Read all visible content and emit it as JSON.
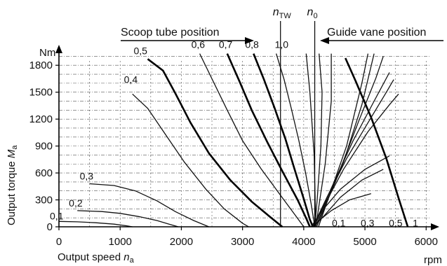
{
  "chart_data": {
    "type": "line",
    "xlabel": "Output speed",
    "xlabel_sub": "a",
    "xlabel_var": "n",
    "ylabel": "Output torque",
    "ylabel_var": "M",
    "ylabel_sub": "a",
    "x_unit": "rpm",
    "y_unit": "Nm",
    "xlim": [
      0,
      6100
    ],
    "ylim": [
      0,
      1950
    ],
    "x_ticks": [
      "0",
      "1000",
      "2000",
      "3000",
      "4000",
      "5000",
      "6000"
    ],
    "y_ticks": [
      "0",
      "300",
      "600",
      "900",
      "1200",
      "1500",
      "1800"
    ],
    "grid": true,
    "header_left": "Scoop tube position",
    "header_right": "Guide vane position",
    "marker_ntw": {
      "var": "n",
      "sub": "TW",
      "x": 3620
    },
    "marker_n0": {
      "var": "n",
      "sub": "0",
      "x": 4180
    },
    "scoop_series": [
      {
        "label": "0,1",
        "bold": false,
        "points": [
          [
            0,
            60
          ],
          [
            300,
            55
          ],
          [
            600,
            45
          ],
          [
            900,
            30
          ],
          [
            1100,
            12
          ],
          [
            1200,
            0
          ]
        ]
      },
      {
        "label": "0,2",
        "bold": false,
        "points": [
          [
            300,
            180
          ],
          [
            700,
            170
          ],
          [
            1000,
            150
          ],
          [
            1300,
            115
          ],
          [
            1600,
            70
          ],
          [
            1800,
            30
          ],
          [
            1950,
            0
          ]
        ]
      },
      {
        "label": "0,3",
        "bold": false,
        "points": [
          [
            500,
            480
          ],
          [
            900,
            460
          ],
          [
            1250,
            400
          ],
          [
            1600,
            290
          ],
          [
            1900,
            170
          ],
          [
            2200,
            70
          ],
          [
            2450,
            0
          ]
        ]
      },
      {
        "label": "0,4",
        "bold": false,
        "points": [
          [
            1200,
            1480
          ],
          [
            1450,
            1320
          ],
          [
            1750,
            1020
          ],
          [
            2050,
            720
          ],
          [
            2400,
            420
          ],
          [
            2700,
            200
          ],
          [
            3000,
            40
          ],
          [
            3100,
            0
          ]
        ]
      },
      {
        "label": "0,5",
        "bold": true,
        "points": [
          [
            1450,
            1870
          ],
          [
            1700,
            1740
          ],
          [
            1900,
            1490
          ],
          [
            2150,
            1160
          ],
          [
            2450,
            820
          ],
          [
            2800,
            520
          ],
          [
            3150,
            280
          ],
          [
            3450,
            110
          ],
          [
            3650,
            0
          ]
        ]
      },
      {
        "label": "0,6",
        "bold": false,
        "points": [
          [
            2300,
            1930
          ],
          [
            2500,
            1650
          ],
          [
            2750,
            1300
          ],
          [
            3000,
            960
          ],
          [
            3300,
            650
          ],
          [
            3600,
            370
          ],
          [
            3850,
            140
          ],
          [
            4000,
            0
          ]
        ]
      },
      {
        "label": "0,7",
        "bold": true,
        "points": [
          [
            2750,
            1930
          ],
          [
            2950,
            1620
          ],
          [
            3150,
            1300
          ],
          [
            3400,
            950
          ],
          [
            3650,
            620
          ],
          [
            3900,
            300
          ],
          [
            4050,
            80
          ],
          [
            4100,
            0
          ]
        ]
      },
      {
        "label": "0,8",
        "bold": true,
        "points": [
          [
            3180,
            1930
          ],
          [
            3350,
            1640
          ],
          [
            3520,
            1330
          ],
          [
            3700,
            980
          ],
          [
            3850,
            640
          ],
          [
            4000,
            310
          ],
          [
            4100,
            80
          ],
          [
            4150,
            0
          ]
        ]
      },
      {
        "label": "1,0",
        "bold": false,
        "points": [
          [
            3550,
            1930
          ],
          [
            3680,
            1640
          ],
          [
            3800,
            1310
          ],
          [
            3920,
            960
          ],
          [
            4030,
            600
          ],
          [
            4120,
            260
          ],
          [
            4180,
            0
          ]
        ]
      }
    ],
    "vane_series": [
      {
        "label": "0,1",
        "bold": false,
        "points": [
          [
            4150,
            0
          ],
          [
            4250,
            70
          ],
          [
            4450,
            180
          ],
          [
            4750,
            300
          ],
          [
            5100,
            370
          ]
        ]
      },
      {
        "label": "0,3",
        "bold": false,
        "points": [
          [
            4120,
            0
          ],
          [
            4300,
            180
          ],
          [
            4600,
            420
          ],
          [
            5000,
            640
          ],
          [
            5400,
            790
          ]
        ]
      },
      {
        "label": "0,5",
        "bold": false,
        "points": [
          [
            4140,
            0
          ],
          [
            4350,
            260
          ],
          [
            4650,
            640
          ],
          [
            5050,
            1060
          ],
          [
            5400,
            1360
          ],
          [
            5550,
            1480
          ]
        ]
      },
      {
        "label": "1",
        "bold": true,
        "points": [
          [
            5700,
            0
          ],
          [
            5550,
            320
          ],
          [
            5350,
            760
          ],
          [
            5100,
            1220
          ],
          [
            4850,
            1620
          ],
          [
            4680,
            1880
          ]
        ]
      }
    ],
    "extra_vane_curves": [
      {
        "bold": false,
        "points": [
          [
            4160,
            0
          ],
          [
            4330,
            120
          ],
          [
            4600,
            330
          ],
          [
            4950,
            520
          ],
          [
            5300,
            640
          ]
        ]
      },
      {
        "bold": false,
        "points": [
          [
            4150,
            0
          ],
          [
            4380,
            330
          ],
          [
            4700,
            760
          ],
          [
            5050,
            1160
          ],
          [
            5350,
            1500
          ],
          [
            5470,
            1640
          ]
        ]
      },
      {
        "bold": false,
        "points": [
          [
            4170,
            0
          ],
          [
            4450,
            430
          ],
          [
            4800,
            950
          ],
          [
            5150,
            1400
          ],
          [
            5400,
            1720
          ]
        ]
      },
      {
        "bold": false,
        "points": [
          [
            4190,
            0
          ],
          [
            4550,
            560
          ],
          [
            4900,
            1180
          ],
          [
            5180,
            1660
          ],
          [
            5300,
            1900
          ]
        ]
      },
      {
        "bold": false,
        "points": [
          [
            4210,
            0
          ],
          [
            4650,
            720
          ],
          [
            4950,
            1360
          ],
          [
            5150,
            1930
          ]
        ]
      },
      {
        "bold": false,
        "points": [
          [
            4240,
            0
          ],
          [
            4700,
            900
          ],
          [
            4950,
            1600
          ],
          [
            5050,
            1930
          ]
        ]
      }
    ],
    "extra_scoop_curves": [
      {
        "bold": false,
        "points": [
          [
            4250,
            1930
          ],
          [
            4300,
            1500
          ],
          [
            4280,
            900
          ],
          [
            4220,
            300
          ],
          [
            4180,
            0
          ]
        ]
      },
      {
        "bold": false,
        "points": [
          [
            4450,
            1930
          ],
          [
            4450,
            1400
          ],
          [
            4350,
            700
          ],
          [
            4230,
            150
          ],
          [
            4190,
            0
          ]
        ]
      },
      {
        "bold": false,
        "points": [
          [
            4040,
            1930
          ],
          [
            4100,
            1500
          ],
          [
            4170,
            800
          ],
          [
            4190,
            200
          ],
          [
            4180,
            0
          ]
        ]
      }
    ]
  }
}
